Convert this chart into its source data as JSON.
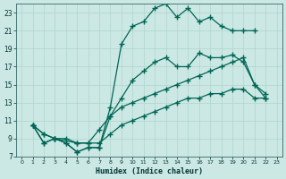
{
  "title": "",
  "xlabel": "Humidex (Indice chaleur)",
  "ylabel": "",
  "bg_color": "#cce8e4",
  "grid_color": "#b0d4cc",
  "line_color": "#006655",
  "xlim": [
    -0.5,
    23.5
  ],
  "ylim": [
    7,
    24
  ],
  "xticks": [
    0,
    1,
    2,
    3,
    4,
    5,
    6,
    7,
    8,
    9,
    10,
    11,
    12,
    13,
    14,
    15,
    16,
    17,
    18,
    19,
    20,
    21,
    22,
    23
  ],
  "yticks": [
    7,
    9,
    11,
    13,
    15,
    17,
    19,
    21,
    23
  ],
  "line1_x": [
    1,
    2,
    3,
    4,
    5,
    6,
    7,
    8,
    9,
    10,
    11,
    12,
    13,
    14,
    15,
    16,
    17,
    18,
    19,
    20,
    21
  ],
  "line1_y": [
    10.5,
    8.5,
    9.0,
    8.5,
    7.5,
    8.0,
    8.0,
    12.5,
    19.5,
    21.5,
    22.0,
    23.5,
    24.0,
    22.5,
    23.5,
    22.0,
    22.5,
    21.5,
    21.0,
    21.0,
    21.0
  ],
  "line2_x": [
    1,
    2,
    3,
    4,
    5,
    6,
    7,
    8,
    9,
    10,
    11,
    12,
    13,
    14,
    15,
    16,
    17,
    18,
    19,
    20,
    21,
    22
  ],
  "line2_y": [
    10.5,
    8.5,
    9.0,
    8.5,
    7.5,
    8.0,
    8.0,
    11.5,
    13.5,
    15.5,
    16.5,
    17.5,
    18.0,
    17.0,
    17.0,
    18.5,
    18.0,
    18.0,
    18.3,
    17.5,
    15.0,
    14.0
  ],
  "line3_x": [
    1,
    2,
    3,
    4,
    5,
    6,
    7,
    8,
    9,
    10,
    11,
    12,
    13,
    14,
    15,
    16,
    17,
    18,
    19,
    20,
    21,
    22
  ],
  "line3_y": [
    10.5,
    9.5,
    9.0,
    9.0,
    8.5,
    8.5,
    10.0,
    11.5,
    12.5,
    13.0,
    13.5,
    14.0,
    14.5,
    15.0,
    15.5,
    16.0,
    16.5,
    17.0,
    17.5,
    18.0,
    15.0,
    13.5
  ],
  "line4_x": [
    1,
    2,
    3,
    5,
    6,
    7,
    8,
    9,
    10,
    11,
    12,
    13,
    14,
    15,
    16,
    17,
    18,
    19,
    20,
    21,
    22
  ],
  "line4_y": [
    10.5,
    9.5,
    9.0,
    8.5,
    8.5,
    8.5,
    9.5,
    10.5,
    11.0,
    11.5,
    12.0,
    12.5,
    13.0,
    13.5,
    13.5,
    14.0,
    14.0,
    14.5,
    14.5,
    13.5,
    13.5
  ]
}
